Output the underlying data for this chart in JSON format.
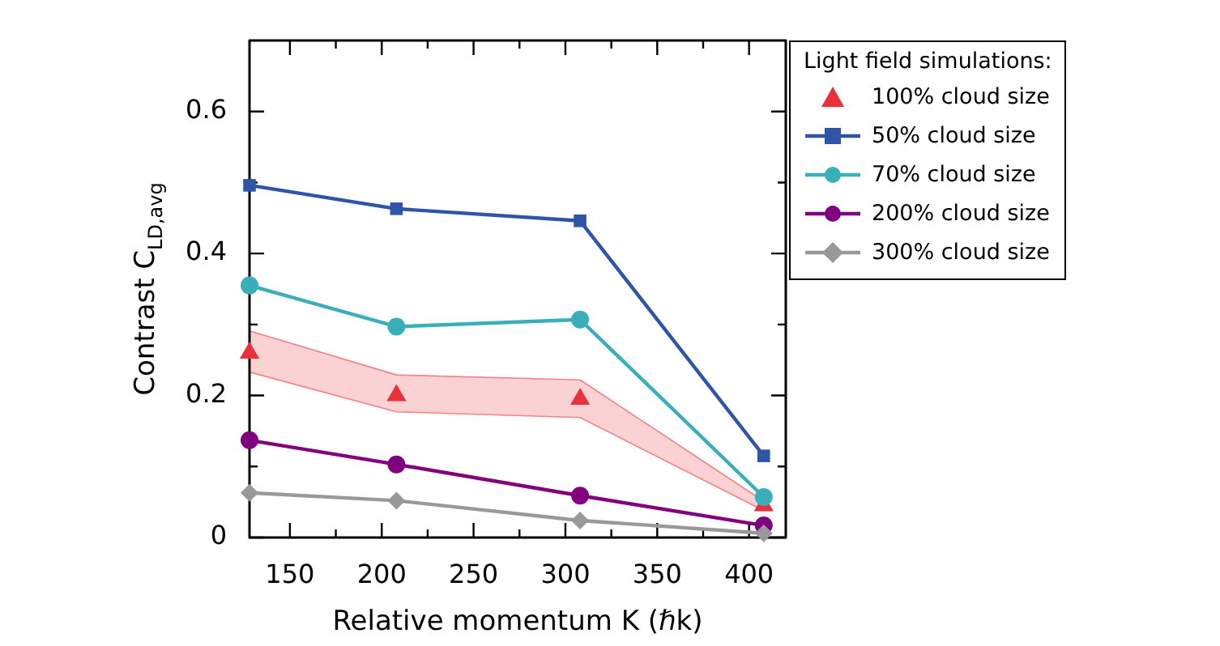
{
  "chart_data": {
    "type": "line",
    "xlabel": "Relative momentum K (ℏk)",
    "ylabel": "Contrast C$_{LD,avg}$",
    "legend_title": "Light field simulations:",
    "legend": "top right",
    "marker": "circle",
    "line_style": "solid",
    "x": [
      128,
      208,
      308,
      408
    ],
    "xlim": [
      128,
      420
    ],
    "xticks": [
      150,
      {
        "value": 175,
        "label": null
      },
      200,
      {
        "value": 225,
        "label": null
      },
      250,
      {
        "value": 275,
        "label": null
      },
      300,
      {
        "value": 325,
        "label": null
      },
      350,
      {
        "value": 375,
        "label": null
      },
      400
    ],
    "ylim": [
      0,
      0.7
    ],
    "yticks": [
      0,
      {
        "value": 0.1,
        "label": null
      },
      0.2,
      {
        "value": 0.3,
        "label": null
      },
      0.4,
      {
        "value": 0.5,
        "label": null
      },
      0.6
    ],
    "series": [
      {
        "name": "100% cloud size",
        "type": "scatter",
        "marker": "triangle",
        "color": "#e8313a",
        "values": [
          0.26,
          0.2,
          0.195,
          0.045
        ],
        "lower": [
          0.233,
          0.177,
          0.169,
          0.038
        ],
        "upper": [
          0.291,
          0.229,
          0.222,
          0.051
        ]
      },
      {
        "name": "50% cloud size",
        "marker": "square",
        "color": "#2f55a8",
        "values": [
          0.496,
          0.463,
          0.446,
          0.115
        ]
      },
      {
        "name": "70% cloud size",
        "color": "#3aafb9",
        "values": [
          0.355,
          0.297,
          0.307,
          0.057
        ]
      },
      {
        "name": "200% cloud size",
        "marker": "circle",
        "color": "#800080",
        "values": [
          0.137,
          0.103,
          0.059,
          0.017
        ]
      },
      {
        "name": "300% cloud size",
        "marker": "diamond",
        "color": "#999999",
        "values": [
          0.063,
          0.052,
          0.024,
          0.006
        ]
      }
    ]
  }
}
